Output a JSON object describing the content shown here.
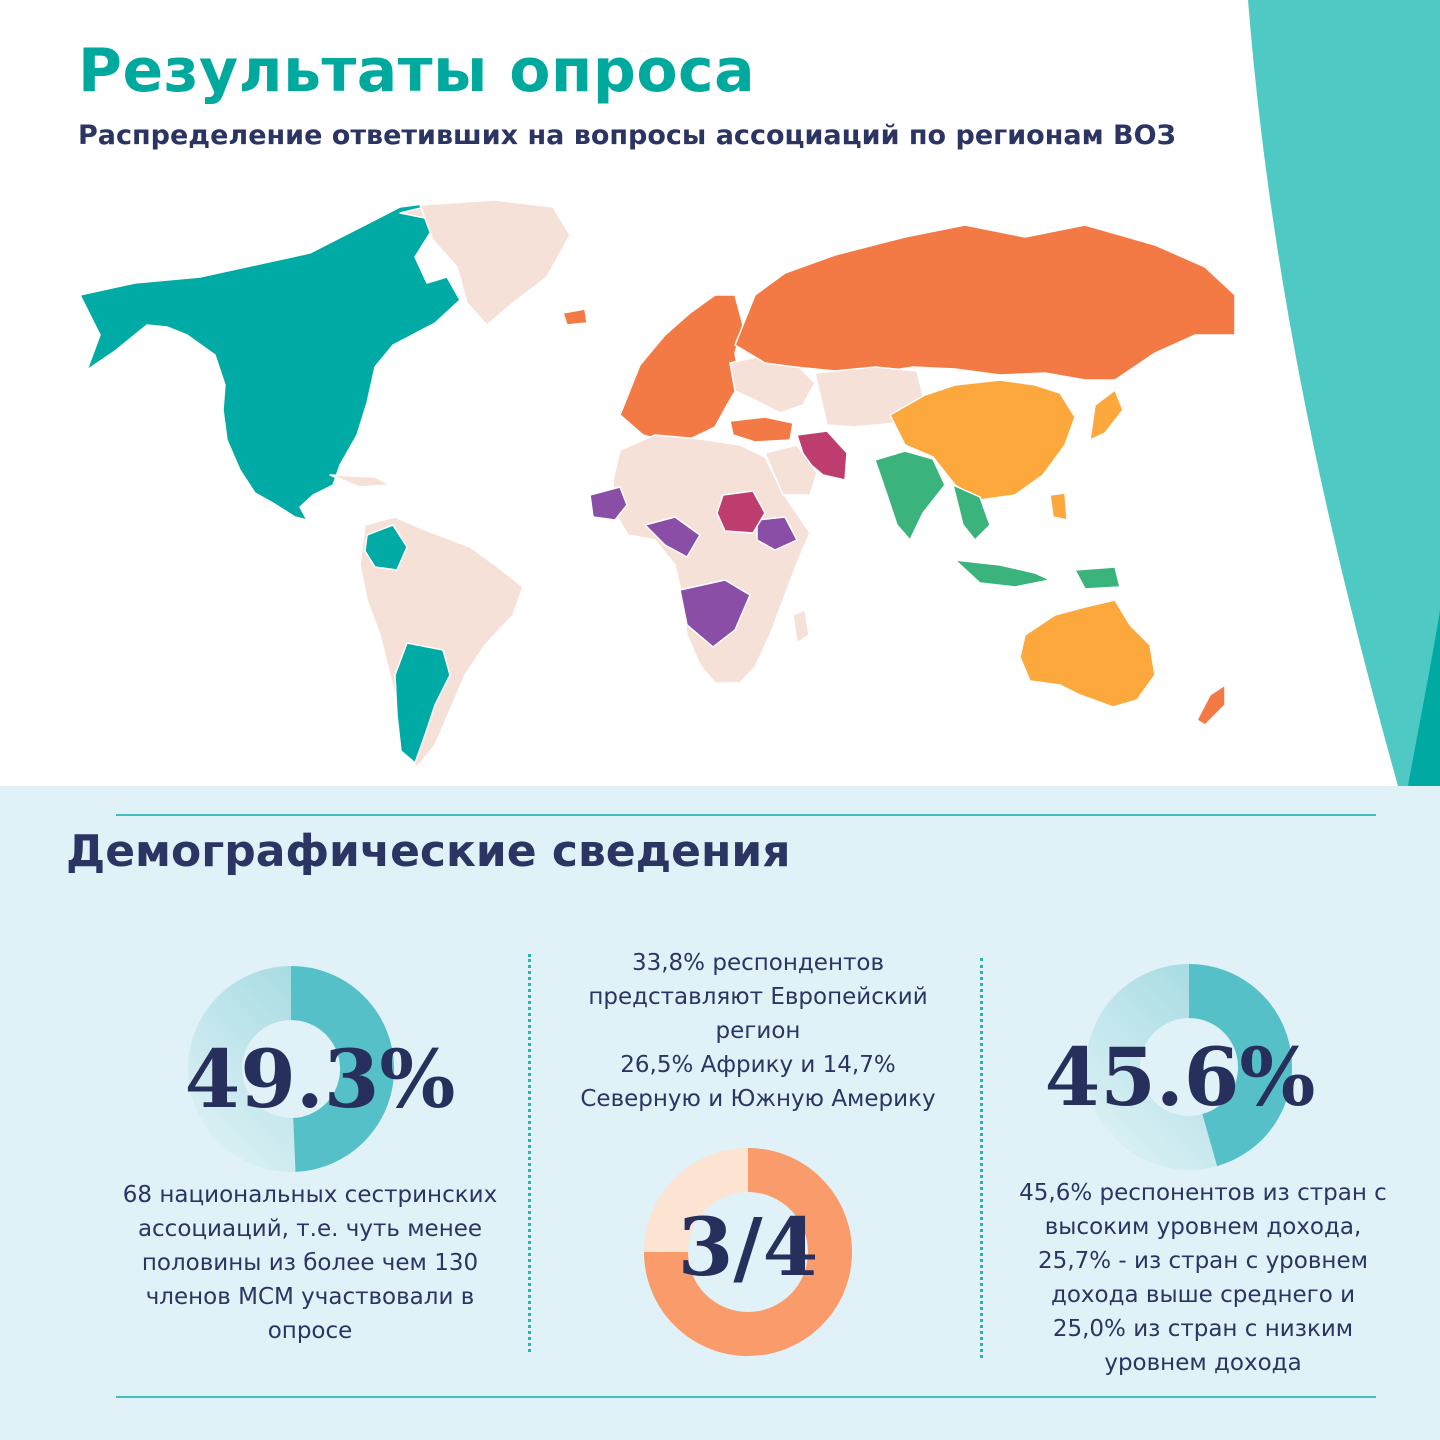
{
  "header": {
    "title": "Результаты опроса",
    "subtitle": "Распределение ответивших на вопросы ассоциаций по регионам ВОЗ"
  },
  "colors": {
    "teal": "#00aaa5",
    "europe": "#f47a45",
    "south_east_asia": "#3bb37c",
    "western_pacific": "#fca83d",
    "africa": "#8a4ea6",
    "eastern_mediterranean": "#bd3d6e",
    "no_data": "#f5e1d8"
  },
  "demographics": {
    "title": "Демографические сведения",
    "left": {
      "value_text": "49.3%",
      "fraction": 0.493,
      "caption": [
        "68 национальных сестринских",
        "ассоциаций, т.е. чуть менее",
        "половины из более чем 130",
        "членов  МСМ участвовали в",
        "опросе"
      ]
    },
    "center": {
      "caption": [
        "33,8% респондентов",
        "представляют Европейский",
        "регион",
        "26,5% Африку и 14,7%",
        "Северную и Южную Америку"
      ],
      "value_text": "3/4",
      "fraction": 0.75
    },
    "right": {
      "value_text": "45.6%",
      "fraction": 0.456,
      "caption": [
        "45,6% респонентов из стран с",
        "высоким уровнем дохода,",
        "25,7% - из стран с уровнем",
        "дохода выше среднего   и",
        "25,0% из стран с низким",
        "уровнем дохода"
      ]
    }
  }
}
